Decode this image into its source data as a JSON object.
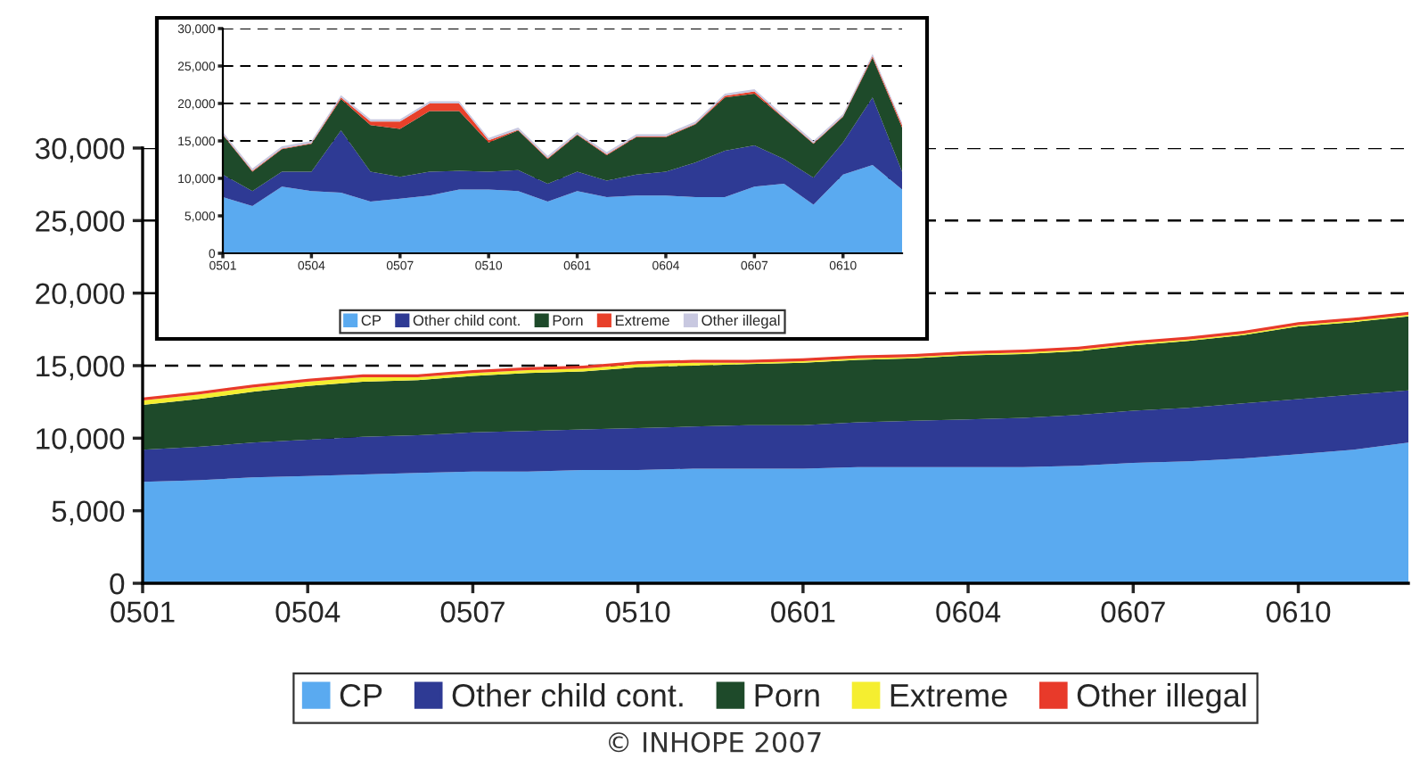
{
  "chart_data": [
    {
      "type": "area",
      "stacked": true,
      "legend": "bottom",
      "grid": "y",
      "categories": [
        "0501",
        null,
        null,
        "0504",
        null,
        null,
        "0507",
        null,
        null,
        "0510",
        null,
        null,
        "0601",
        null,
        null,
        "0604",
        null,
        null,
        "0607",
        null,
        null,
        "0610",
        null,
        null
      ],
      "ylim": [
        0,
        30000
      ],
      "yticks": [
        {
          "value": 0,
          "label": "0"
        },
        {
          "value": 5000,
          "label": "5,000"
        },
        {
          "value": 10000,
          "label": "10,000"
        },
        {
          "value": 15000,
          "label": "15,000"
        },
        {
          "value": 20000,
          "label": "20,000"
        },
        {
          "value": 25000,
          "label": "25,000"
        },
        {
          "value": 30000,
          "label": "30,000"
        }
      ],
      "series": [
        {
          "name": "CP",
          "color": "#5aaaf0",
          "values": [
            7000,
            7100,
            7300,
            7400,
            7500,
            7600,
            7700,
            7700,
            7800,
            7800,
            7900,
            7900,
            7900,
            8000,
            8000,
            8000,
            8000,
            8100,
            8300,
            8400,
            8600,
            8900,
            9200,
            9700
          ]
        },
        {
          "name": "Other child cont.",
          "color": "#2e3a94",
          "values": [
            2200,
            2300,
            2400,
            2500,
            2600,
            2600,
            2700,
            2800,
            2800,
            2900,
            2900,
            3000,
            3000,
            3100,
            3200,
            3300,
            3400,
            3500,
            3600,
            3700,
            3800,
            3800,
            3800,
            3600
          ]
        },
        {
          "name": "Porn",
          "color": "#1e4a2a",
          "values": [
            3100,
            3300,
            3500,
            3700,
            3800,
            3800,
            3900,
            4000,
            4000,
            4200,
            4200,
            4200,
            4300,
            4300,
            4300,
            4400,
            4400,
            4400,
            4500,
            4600,
            4700,
            5000,
            5000,
            5100
          ]
        },
        {
          "name": "Extreme",
          "color": "#f5ee30",
          "values": [
            300,
            300,
            300,
            300,
            300,
            200,
            200,
            200,
            200,
            200,
            200,
            100,
            100,
            100,
            100,
            100,
            100,
            100,
            100,
            100,
            100,
            100,
            100,
            100
          ]
        },
        {
          "name": "Other illegal",
          "color": "#e83a2a",
          "values": [
            200,
            200,
            200,
            200,
            200,
            200,
            200,
            200,
            200,
            200,
            200,
            200,
            200,
            200,
            200,
            200,
            200,
            200,
            200,
            200,
            200,
            200,
            200,
            200
          ]
        }
      ],
      "annotations": [
        "© INHOPE 2007"
      ]
    },
    {
      "type": "area",
      "stacked": true,
      "legend": "bottom",
      "grid": "y",
      "categories": [
        "0501",
        null,
        null,
        "0504",
        null,
        null,
        "0507",
        null,
        null,
        "0510",
        null,
        null,
        "0601",
        null,
        null,
        "0604",
        null,
        null,
        "0607",
        null,
        null,
        "0610",
        null,
        null
      ],
      "ylim": [
        0,
        30000
      ],
      "yticks": [
        {
          "value": 0,
          "label": "0"
        },
        {
          "value": 5000,
          "label": "5,000"
        },
        {
          "value": 10000,
          "label": "10,000"
        },
        {
          "value": 15000,
          "label": "15,000"
        },
        {
          "value": 20000,
          "label": "20,000"
        },
        {
          "value": 25000,
          "label": "25,000"
        },
        {
          "value": 30000,
          "label": "30,000"
        }
      ],
      "series": [
        {
          "name": "CP",
          "color": "#5aaaf0",
          "values": [
            7500,
            6300,
            8900,
            8300,
            8100,
            6900,
            7300,
            7700,
            8500,
            8500,
            8300,
            6900,
            8300,
            7500,
            7700,
            7700,
            7500,
            7500,
            8900,
            9300,
            6500,
            10500,
            11800,
            8500
          ]
        },
        {
          "name": "Other child cont.",
          "color": "#2e3a94",
          "values": [
            3000,
            2000,
            2000,
            2600,
            8300,
            4000,
            2900,
            3200,
            2500,
            2400,
            2800,
            2400,
            2600,
            2200,
            2800,
            3200,
            4600,
            6200,
            5500,
            3300,
            3600,
            4300,
            9000,
            2400
          ]
        },
        {
          "name": "Porn",
          "color": "#1e4a2a",
          "values": [
            5300,
            2600,
            3000,
            3700,
            4200,
            6200,
            6400,
            8100,
            8000,
            3900,
            5300,
            3300,
            4900,
            3400,
            5000,
            4600,
            5100,
            7100,
            6900,
            5400,
            4500,
            3400,
            5300,
            5900
          ]
        },
        {
          "name": "Extreme",
          "color": "#e8402a",
          "values": [
            100,
            100,
            100,
            100,
            200,
            500,
            1000,
            1000,
            1000,
            300,
            100,
            100,
            100,
            100,
            100,
            100,
            100,
            200,
            300,
            100,
            100,
            100,
            200,
            300
          ]
        },
        {
          "name": "Other illegal",
          "color": "#c8c8e0",
          "values": [
            300,
            300,
            300,
            300,
            300,
            300,
            300,
            300,
            300,
            300,
            300,
            300,
            300,
            300,
            300,
            300,
            300,
            300,
            300,
            300,
            300,
            300,
            300,
            300
          ]
        }
      ]
    }
  ]
}
